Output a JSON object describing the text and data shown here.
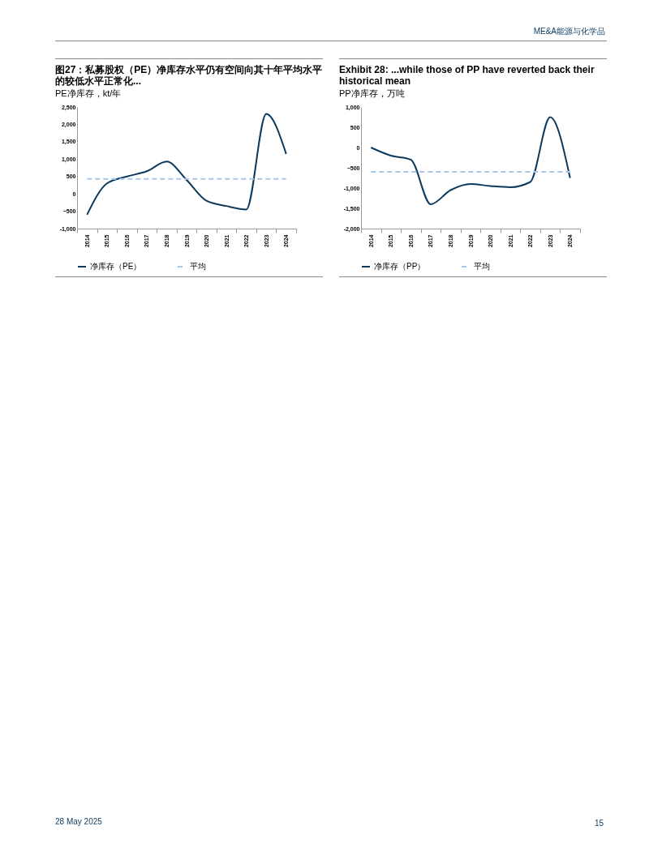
{
  "chart_data": [
    {
      "type": "line",
      "title": "图27：私募股权（PE）净库存水平仍有空间向其十年平均水平的较低水平正常化...",
      "ylabel": "PE净库存，kt/年",
      "categories": [
        "2014",
        "2015",
        "2016",
        "2017",
        "2018",
        "2019",
        "2020",
        "2021",
        "2022",
        "2023",
        "2024"
      ],
      "series": [
        {
          "name": "净库存（PE）",
          "color": "#0b3a5e",
          "line_style": "solid",
          "values": [
            -600,
            300,
            500,
            650,
            930,
            400,
            -200,
            -350,
            -450,
            2300,
            1150
          ]
        },
        {
          "name": "平均",
          "color": "#a9c8e8",
          "line_style": "dashed",
          "values": [
            430,
            430,
            430,
            430,
            430,
            430,
            430,
            430,
            430,
            430,
            430
          ]
        }
      ],
      "ylim": [
        -1000,
        2500
      ],
      "yticks": [
        {
          "value": -1000,
          "label": "-1,000"
        },
        -500,
        0,
        500,
        {
          "value": 1000,
          "label": "1,000"
        },
        {
          "value": 1500,
          "label": "1,500"
        },
        {
          "value": 2000,
          "label": "2,000"
        },
        {
          "value": 2500,
          "label": "2,500"
        }
      ],
      "grid": false,
      "legend": "bottom",
      "marker": "none",
      "annotations": [
        "ME&A能源与化学品",
        "28 May 2025",
        "15"
      ]
    },
    {
      "type": "line",
      "title": "Exhibit 28: ...while those of PP have reverted back their historical mean",
      "ylabel": "PP净库存，万吨",
      "categories": [
        "2014",
        "2015",
        "2016",
        "2017",
        "2018",
        "2019",
        "2020",
        "2021",
        "2022",
        "2023",
        "2024"
      ],
      "series": [
        {
          "name": "净库存（PP）",
          "color": "#0b3a5e",
          "line_style": "solid",
          "values": [
            0,
            -200,
            -300,
            -1400,
            -1050,
            -900,
            -950,
            -980,
            -850,
            750,
            -750
          ]
        },
        {
          "name": "平均",
          "color": "#a9c8e8",
          "line_style": "dashed",
          "values": [
            -600,
            -600,
            -600,
            -600,
            -600,
            -600,
            -600,
            -600,
            -600,
            -600,
            -600
          ]
        }
      ],
      "ylim": [
        -2000,
        1000
      ],
      "yticks": [
        {
          "value": -2000,
          "label": "-2,000"
        },
        {
          "value": -1500,
          "label": "-1,500"
        },
        {
          "value": -1000,
          "label": "-1,000"
        },
        -500,
        0,
        500,
        {
          "value": 1000,
          "label": "1,000"
        }
      ],
      "grid": false,
      "legend": "bottom",
      "marker": "none"
    }
  ]
}
